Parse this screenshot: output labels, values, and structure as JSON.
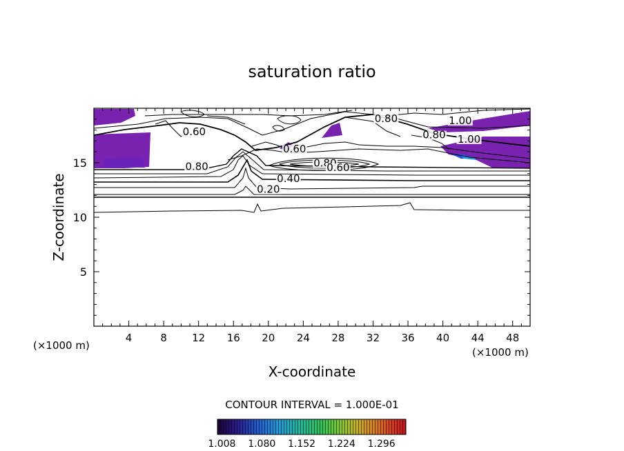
{
  "chart_data": {
    "type": "contour",
    "title": "saturation ratio",
    "xlabel": "X-coordinate",
    "ylabel": "Z-coordinate",
    "x_unit": "(×1000 m)",
    "z_unit": "(×1000 m)",
    "xlim": [
      0,
      50
    ],
    "ylim": [
      0,
      20
    ],
    "x_ticks": [
      "4",
      "8",
      "12",
      "16",
      "20",
      "24",
      "28",
      "32",
      "36",
      "40",
      "44",
      "48"
    ],
    "y_ticks": [
      "5",
      "10",
      "15"
    ],
    "contour_interval_text": "CONTOUR INTERVAL = 1.000E-01",
    "contour_labels": [
      {
        "text": "0.60",
        "x": 11.5,
        "z": 17.6
      },
      {
        "text": "0.80",
        "x": 11.8,
        "z": 14.4
      },
      {
        "text": "0.60",
        "x": 23.0,
        "z": 16.0
      },
      {
        "text": "0.80",
        "x": 26.5,
        "z": 14.7
      },
      {
        "text": "0.60",
        "x": 28.0,
        "z": 14.3
      },
      {
        "text": "0.40",
        "x": 22.3,
        "z": 13.3
      },
      {
        "text": "0.20",
        "x": 20.0,
        "z": 12.3
      },
      {
        "text": "0.80",
        "x": 33.5,
        "z": 18.8
      },
      {
        "text": "0.80",
        "x": 39.0,
        "z": 17.3
      },
      {
        "text": "1.00",
        "x": 42.0,
        "z": 18.6
      },
      {
        "text": "1.00",
        "x": 43.0,
        "z": 16.9
      }
    ],
    "shaded_regions": "saturation ratio > 1.0",
    "colorbar": {
      "ticks": [
        "1.008",
        "1.080",
        "1.152",
        "1.224",
        "1.296"
      ],
      "min": 1.0,
      "max": 1.34,
      "colors": [
        "#1a0033",
        "#2a1a8a",
        "#1f5fd0",
        "#1f9ad6",
        "#1fb89a",
        "#2fc25a",
        "#7fc830",
        "#c8b020",
        "#d97a20",
        "#d84020",
        "#c80f18"
      ]
    },
    "grid": false
  }
}
